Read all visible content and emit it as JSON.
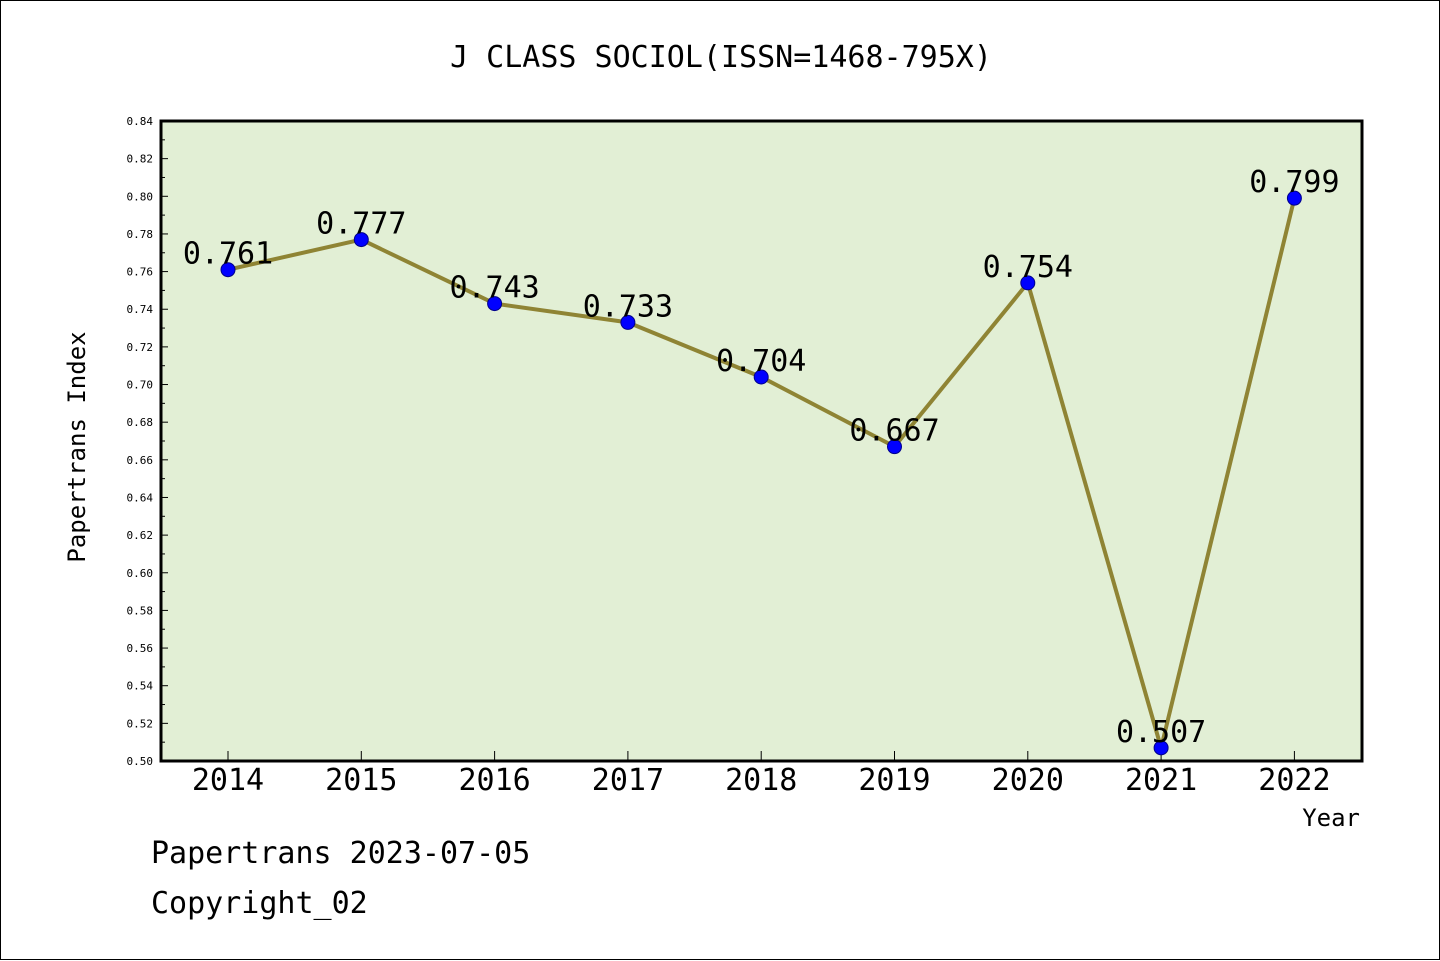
{
  "chart_data": {
    "type": "line",
    "title": "J CLASS SOCIOL(ISSN=1468-795X)",
    "xlabel": "Year",
    "ylabel": "Papertrans Index",
    "categories": [
      "2014",
      "2015",
      "2016",
      "2017",
      "2018",
      "2019",
      "2020",
      "2021",
      "2022"
    ],
    "series": [
      {
        "values": [
          0.761,
          0.777,
          0.743,
          0.733,
          0.704,
          0.667,
          0.754,
          0.507,
          0.799
        ],
        "labels": [
          "0.761",
          "0.777",
          "0.743",
          "0.733",
          "0.704",
          "0.667",
          "0.754",
          "0.507",
          "0.799"
        ]
      }
    ],
    "ylim": [
      0.5,
      0.84
    ],
    "yticks": [
      "0.50",
      "0.52",
      "0.54",
      "0.56",
      "0.58",
      "0.60",
      "0.62",
      "0.64",
      "0.66",
      "0.68",
      "0.70",
      "0.72",
      "0.74",
      "0.76",
      "0.78",
      "0.80",
      "0.82",
      "0.84"
    ],
    "grid": false,
    "legend": "none",
    "colors": {
      "plot_background": "#e2efd5",
      "line": "#8f8434",
      "marker": "#0000ff"
    }
  },
  "footer": {
    "line1": "Papertrans 2023-07-05",
    "line2": "Copyright_02"
  }
}
